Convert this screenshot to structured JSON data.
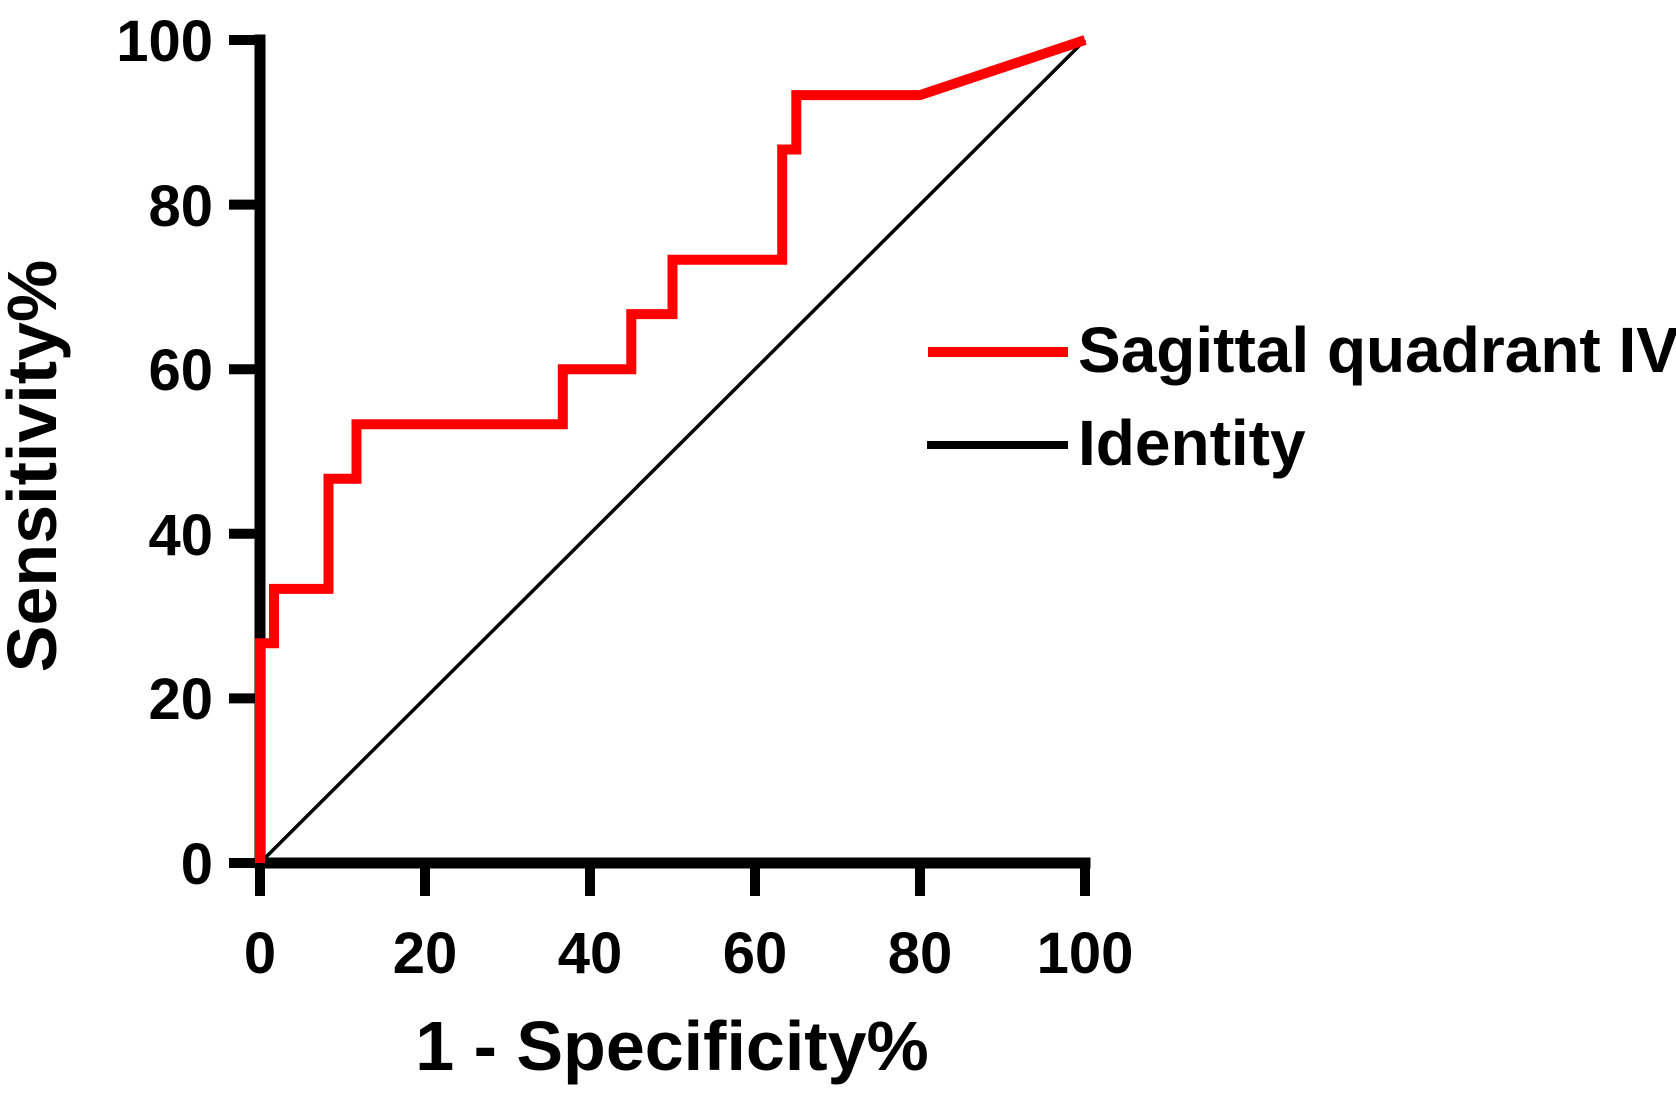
{
  "figure": {
    "background": "#ffffff",
    "accent_color": "#ff0000",
    "axis_color": "#000000"
  },
  "chart_data": {
    "type": "line",
    "subtype": "roc-curve",
    "title": "",
    "xlabel": "1 - Specificity%",
    "ylabel": "Sensitivity%",
    "xlim": [
      0,
      100
    ],
    "ylim": [
      0,
      100
    ],
    "x_ticks": [
      0,
      20,
      40,
      60,
      80,
      100
    ],
    "y_ticks": [
      0,
      20,
      40,
      60,
      80,
      100
    ],
    "x_tick_labels": [
      "0",
      "20",
      "40",
      "60",
      "80",
      "100"
    ],
    "y_tick_labels": [
      "0",
      "20",
      "40",
      "60",
      "80",
      "100"
    ],
    "grid": false,
    "legend_position": "right-inside",
    "series": [
      {
        "name": "Sagittal quadrant IV",
        "color": "#ff0000",
        "line_width": 10,
        "points": [
          [
            0,
            0
          ],
          [
            0,
            26.7
          ],
          [
            1.7,
            26.7
          ],
          [
            1.7,
            33.3
          ],
          [
            8.3,
            33.3
          ],
          [
            8.3,
            46.7
          ],
          [
            11.7,
            46.7
          ],
          [
            11.7,
            53.3
          ],
          [
            36.7,
            53.3
          ],
          [
            36.7,
            60
          ],
          [
            45,
            60
          ],
          [
            45,
            66.7
          ],
          [
            50,
            66.7
          ],
          [
            50,
            73.3
          ],
          [
            63.3,
            73.3
          ],
          [
            63.3,
            86.7
          ],
          [
            65,
            86.7
          ],
          [
            65,
            93.3
          ],
          [
            80,
            93.3
          ],
          [
            100,
            100
          ]
        ]
      },
      {
        "name": "Identity",
        "color": "#000000",
        "line_width": 3.5,
        "points": [
          [
            0,
            0
          ],
          [
            100,
            100
          ]
        ]
      }
    ],
    "legend": [
      {
        "label": "Sagittal quadrant IV",
        "color": "#ff0000",
        "sample_width": 10
      },
      {
        "label": "Identity",
        "color": "#000000",
        "sample_width": 8
      }
    ]
  }
}
